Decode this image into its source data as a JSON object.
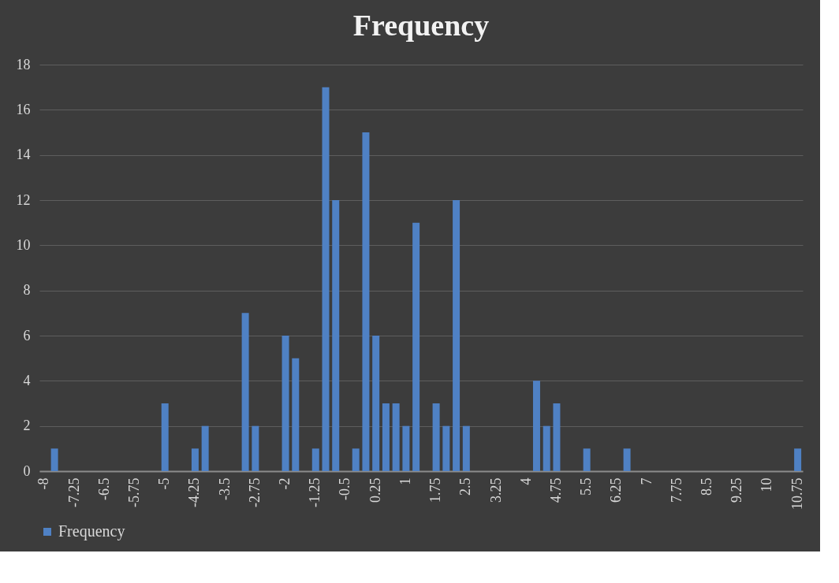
{
  "chart_data": {
    "type": "bar",
    "title": "Frequency",
    "categories": [
      "-8",
      null,
      null,
      "-7.25",
      null,
      null,
      "-6.5",
      null,
      null,
      "-5.75",
      null,
      null,
      "-5",
      null,
      null,
      "-4.25",
      null,
      null,
      "-3.5",
      null,
      null,
      "-2.75",
      null,
      null,
      "-2",
      null,
      null,
      "-1.25",
      null,
      null,
      "-0.5",
      null,
      null,
      "0.25",
      null,
      null,
      "1",
      null,
      null,
      "1.75",
      null,
      null,
      "2.5",
      null,
      null,
      "3.25",
      null,
      null,
      "4",
      null,
      null,
      "4.75",
      null,
      null,
      "5.5",
      null,
      null,
      "6.25",
      null,
      null,
      "7",
      null,
      null,
      "7.75",
      null,
      null,
      "8.5",
      null,
      null,
      "9.25",
      null,
      null,
      "10",
      null,
      null,
      "10.75"
    ],
    "series": [
      {
        "name": "Frequency",
        "color": "#4f81c4",
        "values": [
          0,
          1,
          0,
          0,
          0,
          0,
          0,
          0,
          0,
          0,
          0,
          0,
          3,
          0,
          0,
          1,
          2,
          0,
          0,
          0,
          7,
          2,
          0,
          0,
          6,
          5,
          0,
          1,
          17,
          12,
          0,
          1,
          15,
          6,
          3,
          3,
          2,
          11,
          0,
          3,
          2,
          12,
          2,
          0,
          0,
          0,
          0,
          0,
          0,
          4,
          2,
          3,
          0,
          0,
          1,
          0,
          0,
          0,
          1,
          0,
          0,
          0,
          0,
          0,
          0,
          0,
          0,
          0,
          0,
          0,
          0,
          0,
          0,
          0,
          0,
          1
        ]
      }
    ],
    "ylim": [
      0,
      18
    ],
    "yticks": [
      0,
      2,
      4,
      6,
      8,
      10,
      12,
      14,
      16,
      18
    ],
    "grid": "y",
    "legend": "bottom"
  }
}
